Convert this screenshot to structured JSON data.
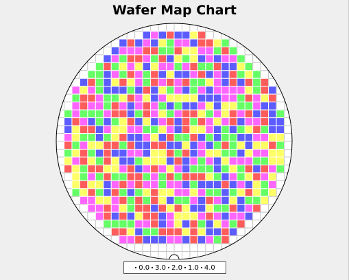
{
  "chart_data": {
    "type": "heatmap",
    "title": "Wafer Map Chart",
    "legend": {
      "placement": "bottom",
      "entries": [
        "0.0",
        "3.0",
        "2.0",
        "1.0",
        "4.0"
      ]
    },
    "grid": {
      "columns": 30,
      "rows": 30,
      "notch": "bottom"
    },
    "value_colors": {
      "0.0": "#ffff66",
      "1.0": "#ff66ff",
      "2.0": "#66ff66",
      "3.0": "#5c5cff",
      "4.0": "#ff5c5c"
    },
    "empty_color": "#ffffff"
  }
}
